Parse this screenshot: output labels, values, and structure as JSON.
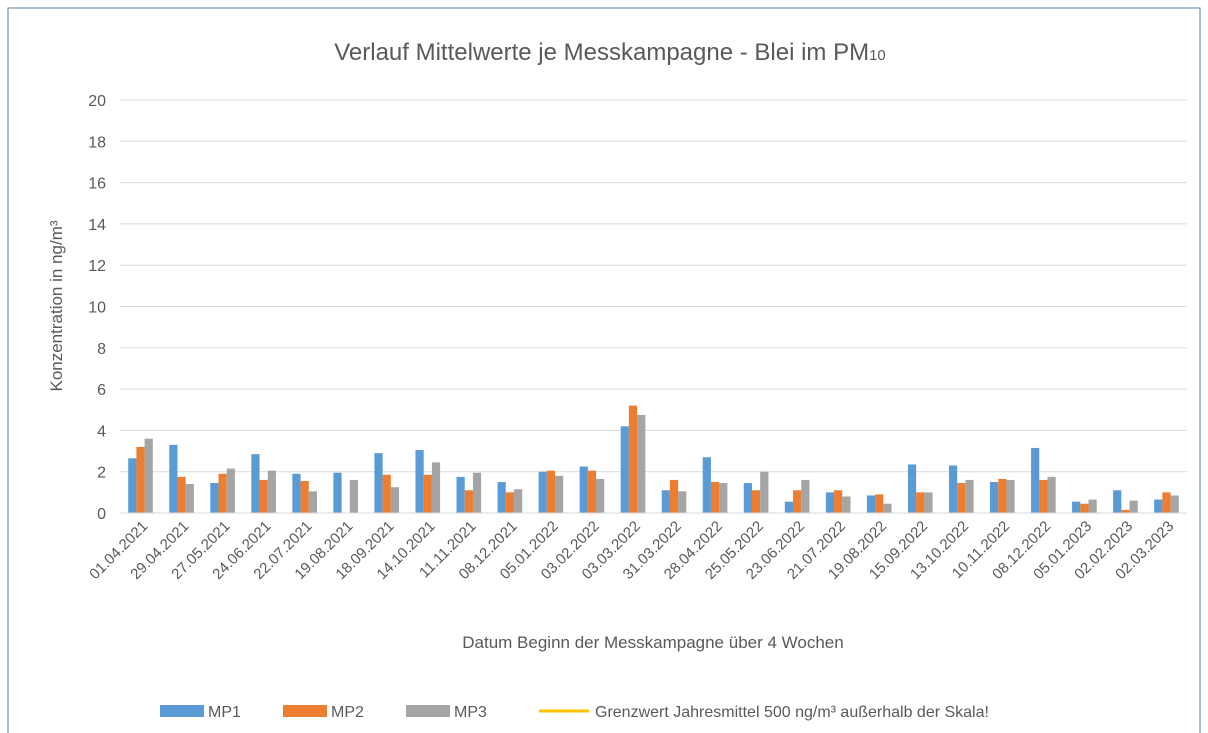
{
  "chart_data": {
    "type": "bar",
    "title": "Verlauf Mittelwerte je Messkampagne - Blei im PM",
    "title_subscript": "10",
    "xlabel": "Datum Beginn der Messkampagne über 4 Wochen",
    "ylabel": "Konzentration in ng/m³",
    "categories": [
      "01.04.2021",
      "29.04.2021",
      "27.05.2021",
      "24.06.2021",
      "22.07.2021",
      "19.08.2021",
      "18.09.2021",
      "14.10.2021",
      "11.11.2021",
      "08.12.2021",
      "05.01.2022",
      "03.02.2022",
      "03.03.2022",
      "31.03.2022",
      "28.04.2022",
      "25.05.2022",
      "23.06.2022",
      "21.07.2022",
      "19.08.2022",
      "15.09.2022",
      "13.10.2022",
      "10.11.2022",
      "08.12.2022",
      "05.01.2023",
      "02.02.2023",
      "02.03.2023"
    ],
    "series": [
      {
        "name": "MP1",
        "color": "#5b9bd5",
        "values": [
          2.65,
          3.3,
          1.45,
          2.85,
          1.9,
          1.95,
          2.9,
          3.05,
          1.75,
          1.5,
          2.0,
          2.25,
          4.2,
          1.1,
          2.7,
          1.45,
          0.55,
          1.0,
          0.85,
          2.35,
          2.3,
          1.5,
          3.15,
          0.55,
          1.1,
          0.65
        ]
      },
      {
        "name": "MP2",
        "color": "#ed7d31",
        "values": [
          3.2,
          1.75,
          1.9,
          1.6,
          1.55,
          null,
          1.85,
          1.85,
          1.1,
          1.0,
          2.05,
          2.05,
          5.2,
          1.6,
          1.5,
          1.1,
          1.1,
          1.1,
          0.9,
          1.0,
          1.45,
          1.65,
          1.6,
          0.45,
          0.15,
          1.0
        ]
      },
      {
        "name": "MP3",
        "color": "#a5a5a5",
        "values": [
          3.6,
          1.4,
          2.15,
          2.05,
          1.05,
          1.6,
          1.25,
          2.45,
          1.95,
          1.15,
          1.8,
          1.65,
          4.75,
          1.05,
          1.45,
          2.0,
          1.6,
          0.8,
          0.45,
          1.0,
          1.6,
          1.6,
          1.75,
          0.65,
          0.6,
          0.85
        ]
      }
    ],
    "reference_line": {
      "name": "Grenzwert Jahresmittel 500 ng/m³ außerhalb der Skala!",
      "color": "#ffc000"
    },
    "ylim": [
      0,
      20
    ],
    "yticks": [
      0,
      2,
      4,
      6,
      8,
      10,
      12,
      14,
      16,
      18,
      20
    ],
    "grid": true
  }
}
